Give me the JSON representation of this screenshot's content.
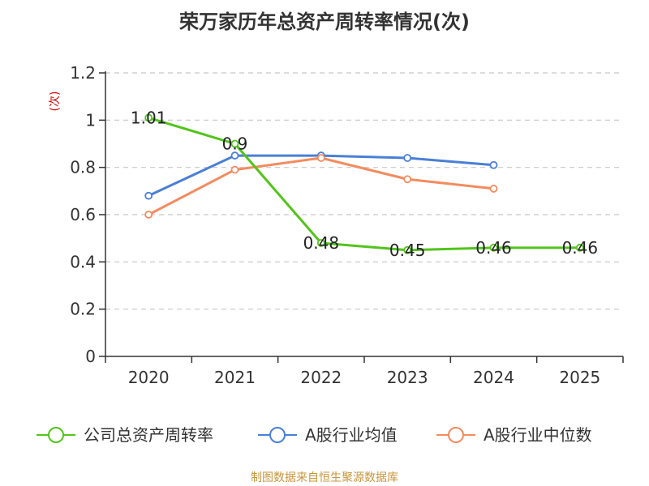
{
  "chart_data": {
    "type": "line",
    "title": "荣万家历年总资产周转率情况(次)",
    "ylabel": "(次)",
    "xlabel": "",
    "categories": [
      "2020",
      "2021",
      "2022",
      "2023",
      "2024",
      "2025"
    ],
    "ylim": [
      0,
      1.2
    ],
    "yticks": [
      "0",
      "0.2",
      "0.4",
      "0.6",
      "0.8",
      "1",
      "1.2"
    ],
    "grid": true,
    "legend_position": "bottom",
    "series": [
      {
        "name": "公司总资产周转率",
        "color": "#52c41a",
        "values": [
          1.01,
          0.9,
          0.48,
          0.45,
          0.46,
          0.46
        ],
        "data_labels": [
          "1.01",
          "0.9",
          "0.48",
          "0.45",
          "0.46",
          "0.46"
        ]
      },
      {
        "name": "A股行业均值",
        "color": "#4a7fd6",
        "values": [
          0.68,
          0.85,
          0.85,
          0.84,
          0.81,
          null
        ],
        "data_labels": []
      },
      {
        "name": "A股行业中位数",
        "color": "#f38b5f",
        "values": [
          0.6,
          0.79,
          0.84,
          0.75,
          0.71,
          null
        ],
        "data_labels": []
      }
    ]
  },
  "ylabel_color": "#cc0000",
  "source_text": "制图数据来自恒生聚源数据库",
  "source_color": "#c8963c"
}
